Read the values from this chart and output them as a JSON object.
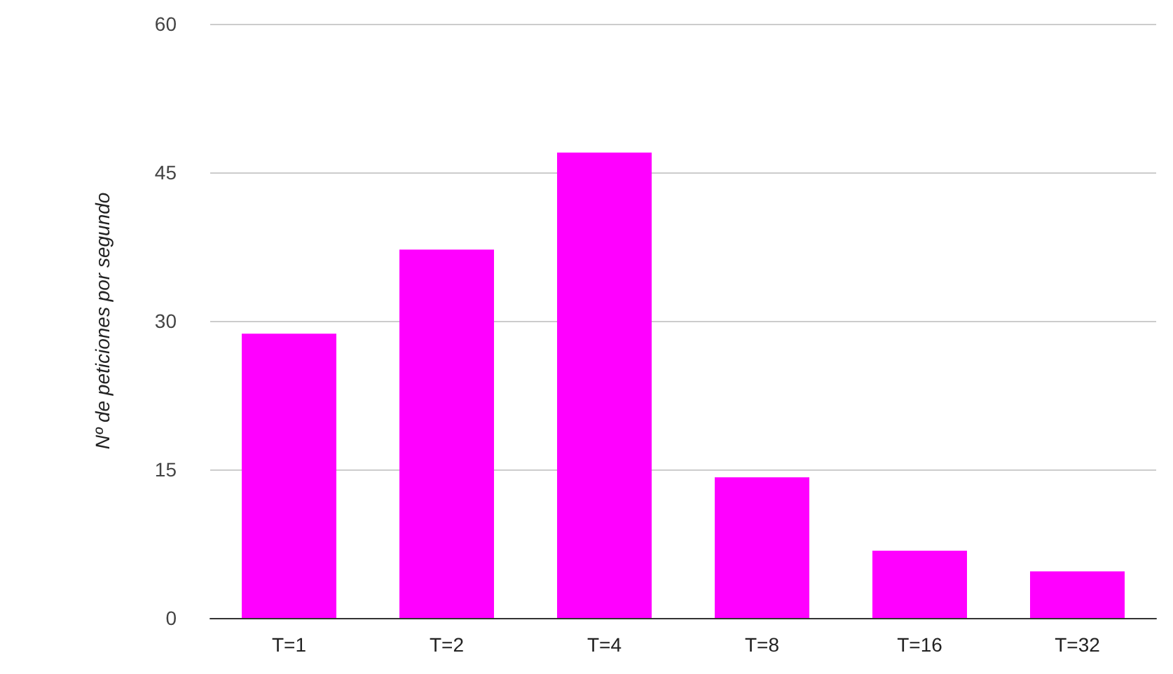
{
  "chart_data": {
    "type": "bar",
    "ylabel": "Nº de peticiones por segundo",
    "categories": [
      "T=1",
      "T=2",
      "T=4",
      "T=8",
      "T=16",
      "T=32"
    ],
    "values": [
      28.7,
      37.2,
      47.0,
      14.2,
      6.8,
      4.7
    ],
    "color": "#ff00ff",
    "ylim": [
      0,
      60
    ],
    "yticks": [
      0,
      15,
      30,
      45,
      60
    ],
    "grid": "y"
  }
}
